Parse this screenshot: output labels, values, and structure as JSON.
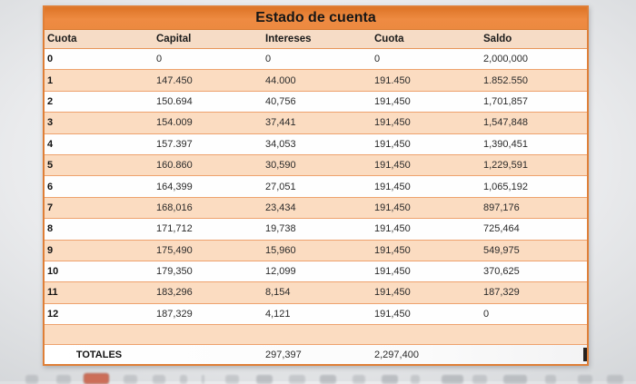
{
  "table": {
    "title": "Estado de cuenta",
    "columns": [
      "Cuota",
      "Capital",
      "Intereses",
      "Cuota",
      "Saldo"
    ],
    "rows": [
      [
        "0",
        "0",
        "0",
        "0",
        "2,000,000"
      ],
      [
        "1",
        "147.450",
        "44.000",
        "191.450",
        "1.852.550"
      ],
      [
        "2",
        "150.694",
        "40,756",
        "191,450",
        "1,701,857"
      ],
      [
        "3",
        "154.009",
        "37,441",
        "191,450",
        "1,547,848"
      ],
      [
        "4",
        "157.397",
        "34,053",
        "191,450",
        "1,390,451"
      ],
      [
        "5",
        "160.860",
        "30,590",
        "191,450",
        "1,229,591"
      ],
      [
        "6",
        "164,399",
        "27,051",
        "191,450",
        "1,065,192"
      ],
      [
        "7",
        "168,016",
        "23,434",
        "191,450",
        "897,176"
      ],
      [
        "8",
        "171,712",
        "19,738",
        "191,450",
        "725,464"
      ],
      [
        "9",
        "175,490",
        "15,960",
        "191,450",
        "549,975"
      ],
      [
        "10",
        "179,350",
        "12,099",
        "191,450",
        "370,625"
      ],
      [
        "11",
        "183,296",
        "8,154",
        "191,450",
        "187,329"
      ],
      [
        "12",
        "187,329",
        "4,121",
        "191,450",
        "0"
      ]
    ],
    "totals_row": {
      "label": "TOTALES",
      "intereses_total": "297,397",
      "cuota_total": "2,297,400"
    }
  },
  "colors": {
    "title_bar": "#ee8b42",
    "header_row_bg": "#f6dcc6",
    "row_stripe": "#fbdcc1",
    "row_white": "#fefefe",
    "table_border": "#df7f37",
    "row_divider": "#eea26d",
    "text": "#2a2a2a",
    "selection_handle": "#26211e"
  }
}
